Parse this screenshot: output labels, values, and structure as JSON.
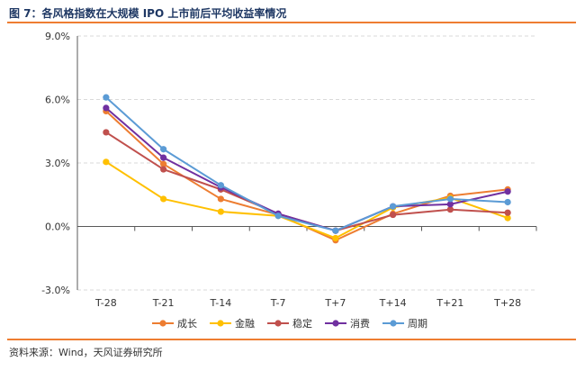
{
  "header": {
    "title": "图 7：各风格指数在大规模 IPO 上市前后平均收益率情况"
  },
  "footer": {
    "source": "资料来源：Wind，天风证券研究所"
  },
  "chart_data": {
    "type": "line",
    "title": "图 7：各风格指数在大规模 IPO 上市前后平均收益率情况",
    "xlabel": "",
    "ylabel": "",
    "categories": [
      "T-28",
      "T-21",
      "T-14",
      "T-7",
      "T+7",
      "T+14",
      "T+21",
      "T+28"
    ],
    "y_ticks": [
      "9.0%",
      "6.0%",
      "3.0%",
      "0.0%",
      "-3.0%"
    ],
    "y_tick_values": [
      9,
      6,
      3,
      0,
      -3
    ],
    "ylim": [
      -3,
      9
    ],
    "grid": true,
    "legend_position": "bottom",
    "series": [
      {
        "name": "成长",
        "color": "#ed7d31",
        "values": [
          5.45,
          2.95,
          1.3,
          0.55,
          -0.65,
          0.6,
          1.45,
          1.75
        ]
      },
      {
        "name": "金融",
        "color": "#ffc000",
        "values": [
          3.05,
          1.3,
          0.7,
          0.5,
          -0.55,
          0.9,
          1.35,
          0.4
        ]
      },
      {
        "name": "稳定",
        "color": "#c0504d",
        "values": [
          4.45,
          2.7,
          1.75,
          0.6,
          -0.2,
          0.55,
          0.8,
          0.65
        ]
      },
      {
        "name": "消费",
        "color": "#7030a0",
        "values": [
          5.6,
          3.25,
          1.85,
          0.6,
          -0.2,
          0.95,
          1.05,
          1.65
        ]
      },
      {
        "name": "周期",
        "color": "#5b9bd5",
        "values": [
          6.1,
          3.65,
          1.95,
          0.5,
          -0.2,
          0.95,
          1.3,
          1.15
        ]
      }
    ]
  }
}
